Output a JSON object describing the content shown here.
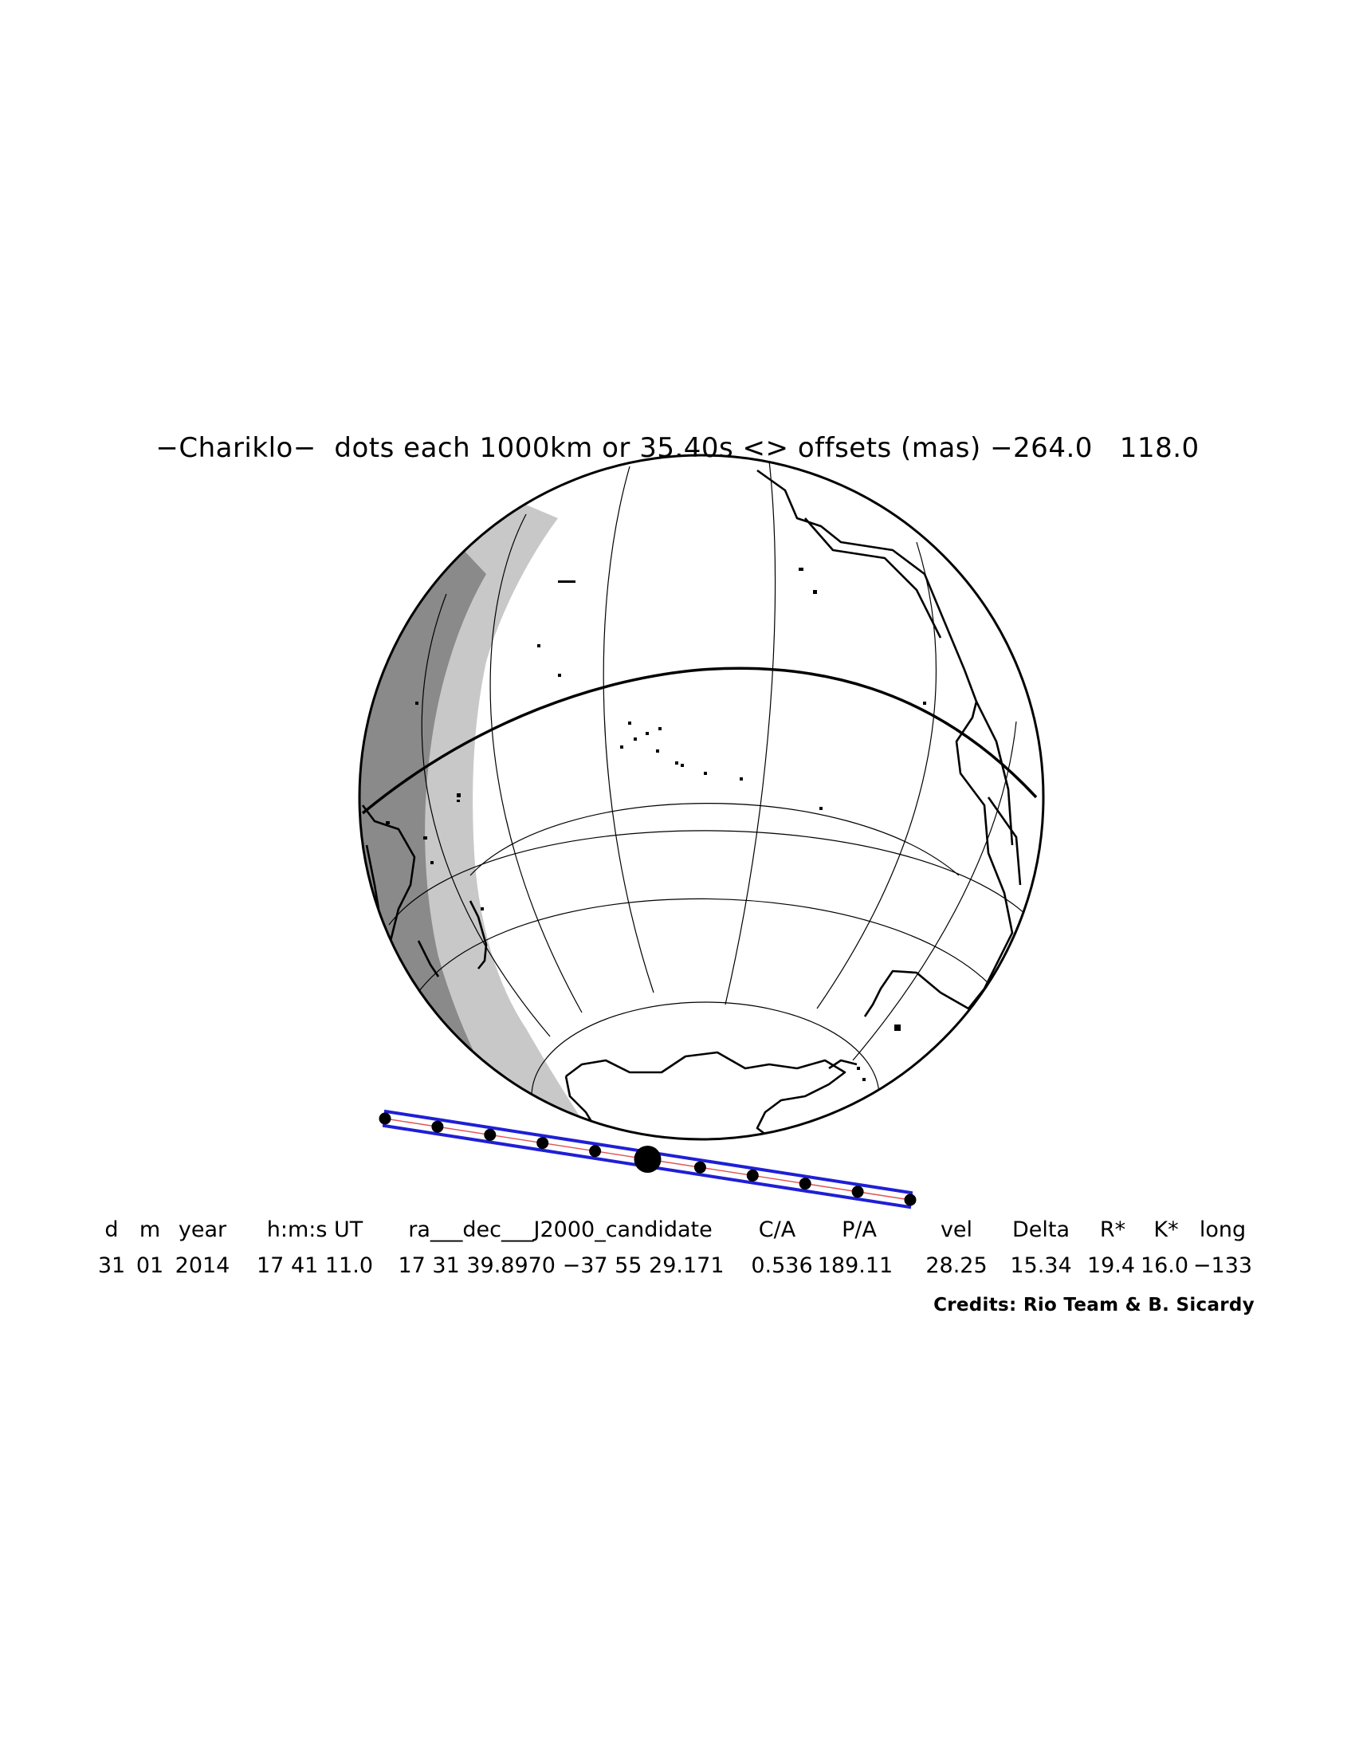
{
  "header": {
    "title": "−Chariklo−  dots each 1000km or 35.40s <> offsets (mas) −264.0   118.0"
  },
  "map": {
    "projection": "orthographic",
    "view": "Pacific Ocean and Antarctica centered globe",
    "features": [
      "night-side shading",
      "twilight band",
      "equator",
      "meridians",
      "parallels",
      "coastlines"
    ],
    "colors": {
      "coastline": "#000000",
      "grid": "#000000",
      "twilight": "#c8c8c8",
      "night": "#8a8a8a",
      "path_band": "#1f1fd6",
      "center_line": "#e05050"
    },
    "path": {
      "dot_count": 11,
      "closest_approach_dot_index": 5
    }
  },
  "table": {
    "headers": [
      "d",
      "m",
      "year",
      "h:m:s UT",
      "ra___dec___J2000_candidate",
      "C/A",
      "P/A",
      "vel",
      "Delta",
      "R*",
      "K*",
      "long"
    ],
    "values": [
      "31",
      "01",
      "2014",
      "17 41 11.0",
      "17 31 39.8970 −37 55 29.171",
      "0.536",
      "189.11",
      "28.25",
      "15.34",
      "19.4",
      "16.0",
      "−133"
    ]
  },
  "footer": {
    "credits": "Credits: Rio Team & B. Sicardy"
  }
}
